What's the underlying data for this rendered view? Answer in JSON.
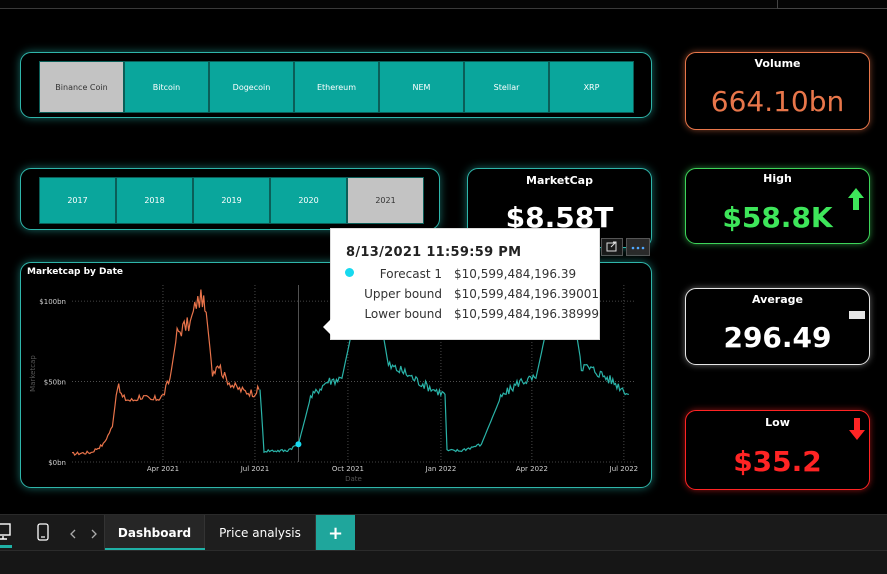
{
  "coin_slicer": {
    "items": [
      "Binance Coin",
      "Bitcoin",
      "Dogecoin",
      "Ethereum",
      "NEM",
      "Stellar",
      "XRP"
    ],
    "selected": "Binance Coin"
  },
  "year_slicer": {
    "items": [
      "2017",
      "2018",
      "2019",
      "2020",
      "2021"
    ],
    "selected": "2021"
  },
  "kpis": {
    "marketcap": {
      "title": "MarketCap",
      "value": "$8.58T"
    },
    "volume": {
      "title": "Volume",
      "value": "664.10bn",
      "color": "#e8764a"
    },
    "high": {
      "title": "High",
      "value": "$58.8K",
      "color": "#3ee65a"
    },
    "average": {
      "title": "Average",
      "value": "296.49",
      "color": "#ffffff"
    },
    "low": {
      "title": "Low",
      "value": "$35.2",
      "color": "#ff2424"
    }
  },
  "tooltip": {
    "title": "8/13/2021 11:59:59 PM",
    "rows": [
      {
        "label": "Forecast 1",
        "value": "$10,599,484,196.39"
      },
      {
        "label": "Upper bound",
        "value": "$10,599,484,196.39001"
      },
      {
        "label": "Lower bound",
        "value": "$10,599,484,196.38999"
      }
    ]
  },
  "chart_data": {
    "type": "line",
    "title": "Marketcap by Date",
    "xlabel": "Date",
    "ylabel": "Marketcap",
    "y_ticks": [
      "$0bn",
      "$50bn",
      "$100bn"
    ],
    "x_ticks": [
      "Apr 2021",
      "Jul 2021",
      "Oct 2021",
      "Jan 2022",
      "Apr 2022",
      "Jul 2022"
    ],
    "ylim": [
      0,
      110
    ],
    "grid": true,
    "series": [
      {
        "role": "actual",
        "color": "#e8734a",
        "x": [
          "2021-01-01",
          "2021-01-20",
          "2021-02-01",
          "2021-02-10",
          "2021-02-15",
          "2021-02-20",
          "2021-03-01",
          "2021-03-10",
          "2021-03-20",
          "2021-04-01",
          "2021-04-08",
          "2021-04-15",
          "2021-04-22",
          "2021-04-28",
          "2021-05-04",
          "2021-05-10",
          "2021-05-15",
          "2021-05-20",
          "2021-05-25",
          "2021-06-01",
          "2021-06-10",
          "2021-06-20",
          "2021-06-30",
          "2021-07-05"
        ],
        "values": [
          5,
          6,
          11,
          22,
          48,
          40,
          38,
          41,
          38,
          41,
          52,
          80,
          84,
          86,
          99,
          102,
          86,
          55,
          62,
          53,
          47,
          44,
          43,
          45
        ]
      },
      {
        "role": "forecast",
        "color": "#2ab3a8",
        "x": [
          "2021-07-06",
          "2021-07-10",
          "2021-08-01",
          "2021-08-13",
          "2021-08-25",
          "2021-09-10",
          "2021-09-25",
          "2021-10-10",
          "2021-10-25",
          "2021-11-10",
          "2021-11-25",
          "2021-12-10",
          "2021-12-25",
          "2022-01-05",
          "2022-01-07",
          "2022-01-20",
          "2022-02-10",
          "2022-03-01",
          "2022-03-20",
          "2022-04-05",
          "2022-04-20",
          "2022-05-05",
          "2022-05-20",
          "2022-06-05",
          "2022-06-20",
          "2022-07-01",
          "2022-07-06"
        ],
        "values": [
          45,
          7,
          7,
          11,
          40,
          50,
          52,
          96,
          120,
          60,
          56,
          50,
          45,
          42,
          7,
          7,
          11,
          40,
          50,
          52,
          96,
          120,
          60,
          56,
          50,
          45,
          42
        ]
      }
    ]
  },
  "bottom": {
    "tabs": [
      "Dashboard",
      "Price analysis"
    ],
    "active_tab": "Dashboard",
    "add_label": "+"
  }
}
